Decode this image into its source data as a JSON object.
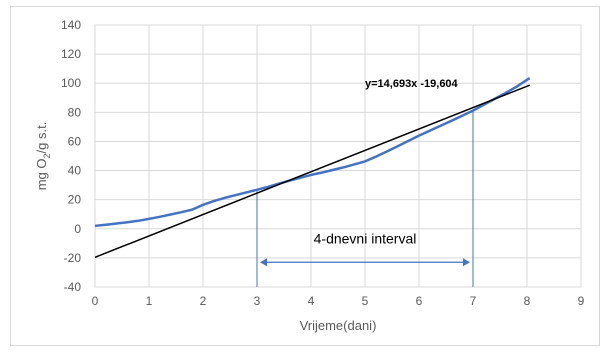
{
  "chart_data": {
    "type": "line",
    "title": "",
    "xlabel": "Vrijeme(dani)",
    "ylabel_parts": {
      "pre": "mg O",
      "sub": "2",
      "post": "/g s.t."
    },
    "xlim": [
      0,
      9
    ],
    "ylim": [
      -40,
      140
    ],
    "x_ticks": [
      "0",
      "1",
      "2",
      "3",
      "4",
      "5",
      "6",
      "7",
      "8",
      "9"
    ],
    "y_ticks": [
      "-40",
      "-20",
      "0",
      "20",
      "40",
      "60",
      "80",
      "100",
      "120",
      "140"
    ],
    "grid": true,
    "series": [
      {
        "color": "#4472c4",
        "x": [
          0,
          0.2,
          0.4,
          0.6,
          0.8,
          1.0,
          1.2,
          1.4,
          1.6,
          1.8,
          2.0,
          2.2,
          2.4,
          2.6,
          2.8,
          3.0,
          3.2,
          3.4,
          3.6,
          3.8,
          4.0,
          4.2,
          4.4,
          4.6,
          4.8,
          5.0,
          5.2,
          5.4,
          5.6,
          5.8,
          6.0,
          6.2,
          6.4,
          6.6,
          6.8,
          7.0,
          7.2,
          7.4,
          7.6,
          7.8,
          8.05
        ],
        "y": [
          2,
          2.8,
          3.6,
          4.5,
          5.5,
          6.8,
          8.2,
          9.8,
          11.4,
          13.2,
          16.5,
          19,
          21.2,
          23.1,
          25,
          26.8,
          28.8,
          31,
          33,
          35,
          37,
          38.6,
          40.4,
          42.2,
          44.2,
          46.3,
          49.5,
          53,
          56.6,
          60.3,
          64,
          67.4,
          70.8,
          74.2,
          77.7,
          81.2,
          85.2,
          89.2,
          93.2,
          97.5,
          103.5
        ]
      },
      {
        "color": "#000000",
        "kind": "trendline",
        "slope": 14.693,
        "intercept": -19.604,
        "x_range": [
          0,
          8.05
        ]
      }
    ],
    "annotations": {
      "equation": "y=14,693x -19,604",
      "interval_label": "4-dnevni interval",
      "interval_start": 3,
      "interval_end": 7,
      "interval_arrow_y": -23,
      "marker_color": "#4472c4"
    }
  }
}
